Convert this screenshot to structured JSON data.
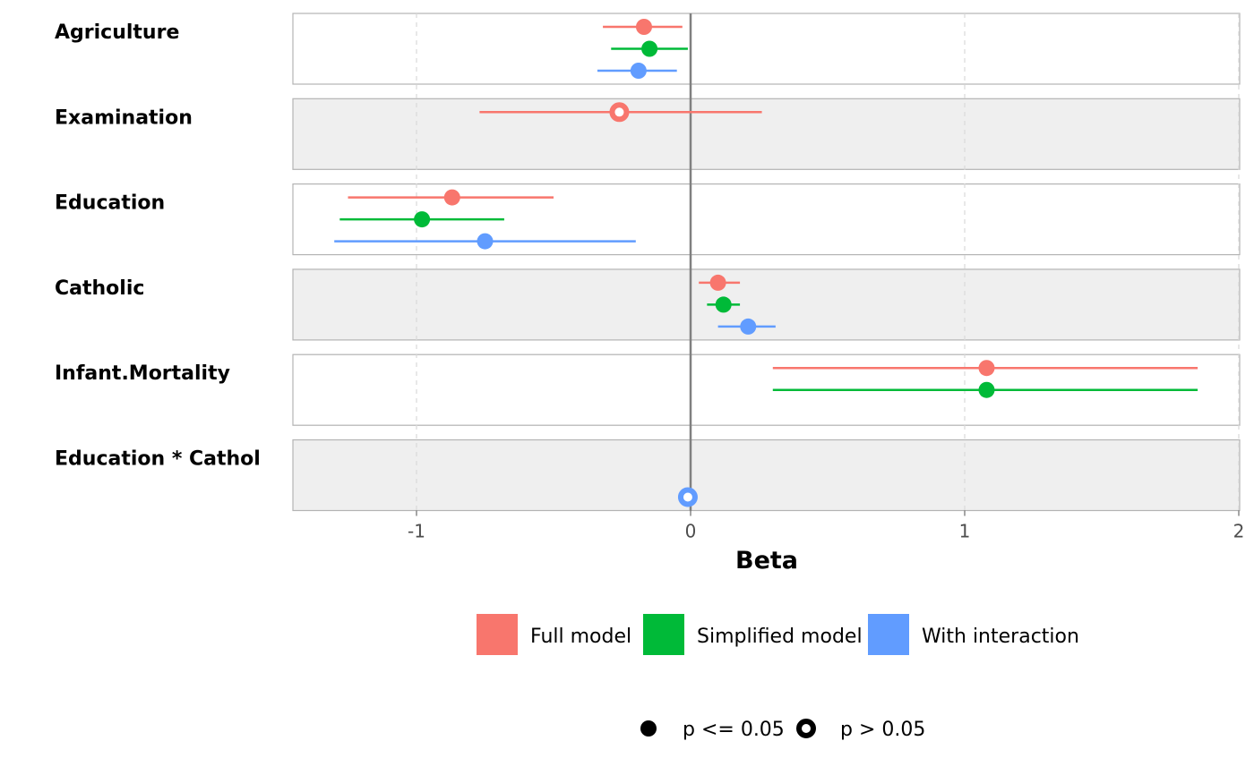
{
  "chart_data": {
    "type": "forest",
    "xlabel": "Beta",
    "xlim": [
      -1.45,
      2.0
    ],
    "x_ticks": [
      "-1",
      "0",
      "1",
      "2"
    ],
    "x_tick_values": [
      -1,
      0,
      1,
      2
    ],
    "reference_line": 0,
    "grid": "vertical dashed",
    "panel_colors": [
      "#ffffff",
      "#efefef"
    ],
    "terms": [
      "Agriculture",
      "Examination",
      "Education",
      "Catholic",
      "Infant.Mortality",
      "Education * Cathol"
    ],
    "series": [
      {
        "name": "Full model",
        "color": "#F8766D",
        "points": [
          {
            "term": "Agriculture",
            "estimate": -0.17,
            "low": -0.32,
            "high": -0.03,
            "significant": true
          },
          {
            "term": "Examination",
            "estimate": -0.26,
            "low": -0.77,
            "high": 0.26,
            "significant": false
          },
          {
            "term": "Education",
            "estimate": -0.87,
            "low": -1.25,
            "high": -0.5,
            "significant": true
          },
          {
            "term": "Catholic",
            "estimate": 0.1,
            "low": 0.03,
            "high": 0.18,
            "significant": true
          },
          {
            "term": "Infant.Mortality",
            "estimate": 1.08,
            "low": 0.3,
            "high": 1.85,
            "significant": true
          }
        ]
      },
      {
        "name": "Simplified model",
        "color": "#00BA38",
        "points": [
          {
            "term": "Agriculture",
            "estimate": -0.15,
            "low": -0.29,
            "high": -0.01,
            "significant": true
          },
          {
            "term": "Education",
            "estimate": -0.98,
            "low": -1.28,
            "high": -0.68,
            "significant": true
          },
          {
            "term": "Catholic",
            "estimate": 0.12,
            "low": 0.06,
            "high": 0.18,
            "significant": true
          },
          {
            "term": "Infant.Mortality",
            "estimate": 1.08,
            "low": 0.3,
            "high": 1.85,
            "significant": true
          }
        ]
      },
      {
        "name": "With interaction",
        "color": "#619CFF",
        "points": [
          {
            "term": "Agriculture",
            "estimate": -0.19,
            "low": -0.34,
            "high": -0.05,
            "significant": true
          },
          {
            "term": "Education",
            "estimate": -0.75,
            "low": -1.3,
            "high": -0.2,
            "significant": true
          },
          {
            "term": "Catholic",
            "estimate": 0.21,
            "low": 0.1,
            "high": 0.31,
            "significant": true
          },
          {
            "term": "Education * Cathol",
            "estimate": -0.01,
            "low": -0.01,
            "high": -0.01,
            "significant": false
          }
        ]
      }
    ],
    "shape_legend": [
      {
        "label": "p <= 0.05",
        "significant": true
      },
      {
        "label": "p > 0.05",
        "significant": false
      }
    ]
  }
}
